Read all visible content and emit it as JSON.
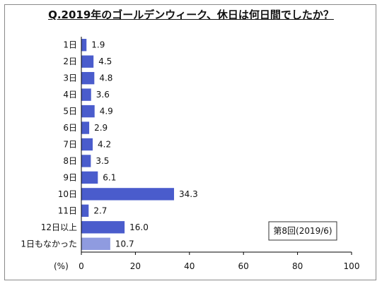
{
  "chart_data": {
    "type": "bar",
    "orientation": "horizontal",
    "title": "Q.2019年のゴールデンウィーク、休日は何日間でしたか？",
    "categories": [
      "1日",
      "2日",
      "3日",
      "4日",
      "5日",
      "6日",
      "7日",
      "8日",
      "9日",
      "10日",
      "11日",
      "12日以上",
      "1日もなかった"
    ],
    "values": [
      1.9,
      4.5,
      4.8,
      3.6,
      4.9,
      2.9,
      4.2,
      3.5,
      6.1,
      34.3,
      2.7,
      16.0,
      10.7
    ],
    "value_labels": [
      "1.9",
      "4.5",
      "4.8",
      "3.6",
      "4.9",
      "2.9",
      "4.2",
      "3.5",
      "6.1",
      "34.3",
      "2.7",
      "16.0",
      "10.7"
    ],
    "xlim": [
      0,
      100
    ],
    "xticks": [
      "0",
      "20",
      "40",
      "60",
      "80",
      "100"
    ],
    "unit_label": "(%)",
    "annotation": "第8回(2019/6)",
    "grid": false,
    "colors": {
      "bar": "#4a5ccc",
      "bar_highlight": "#8f9be0",
      "axis": "#000000",
      "frame": "#8a8a8a"
    }
  }
}
